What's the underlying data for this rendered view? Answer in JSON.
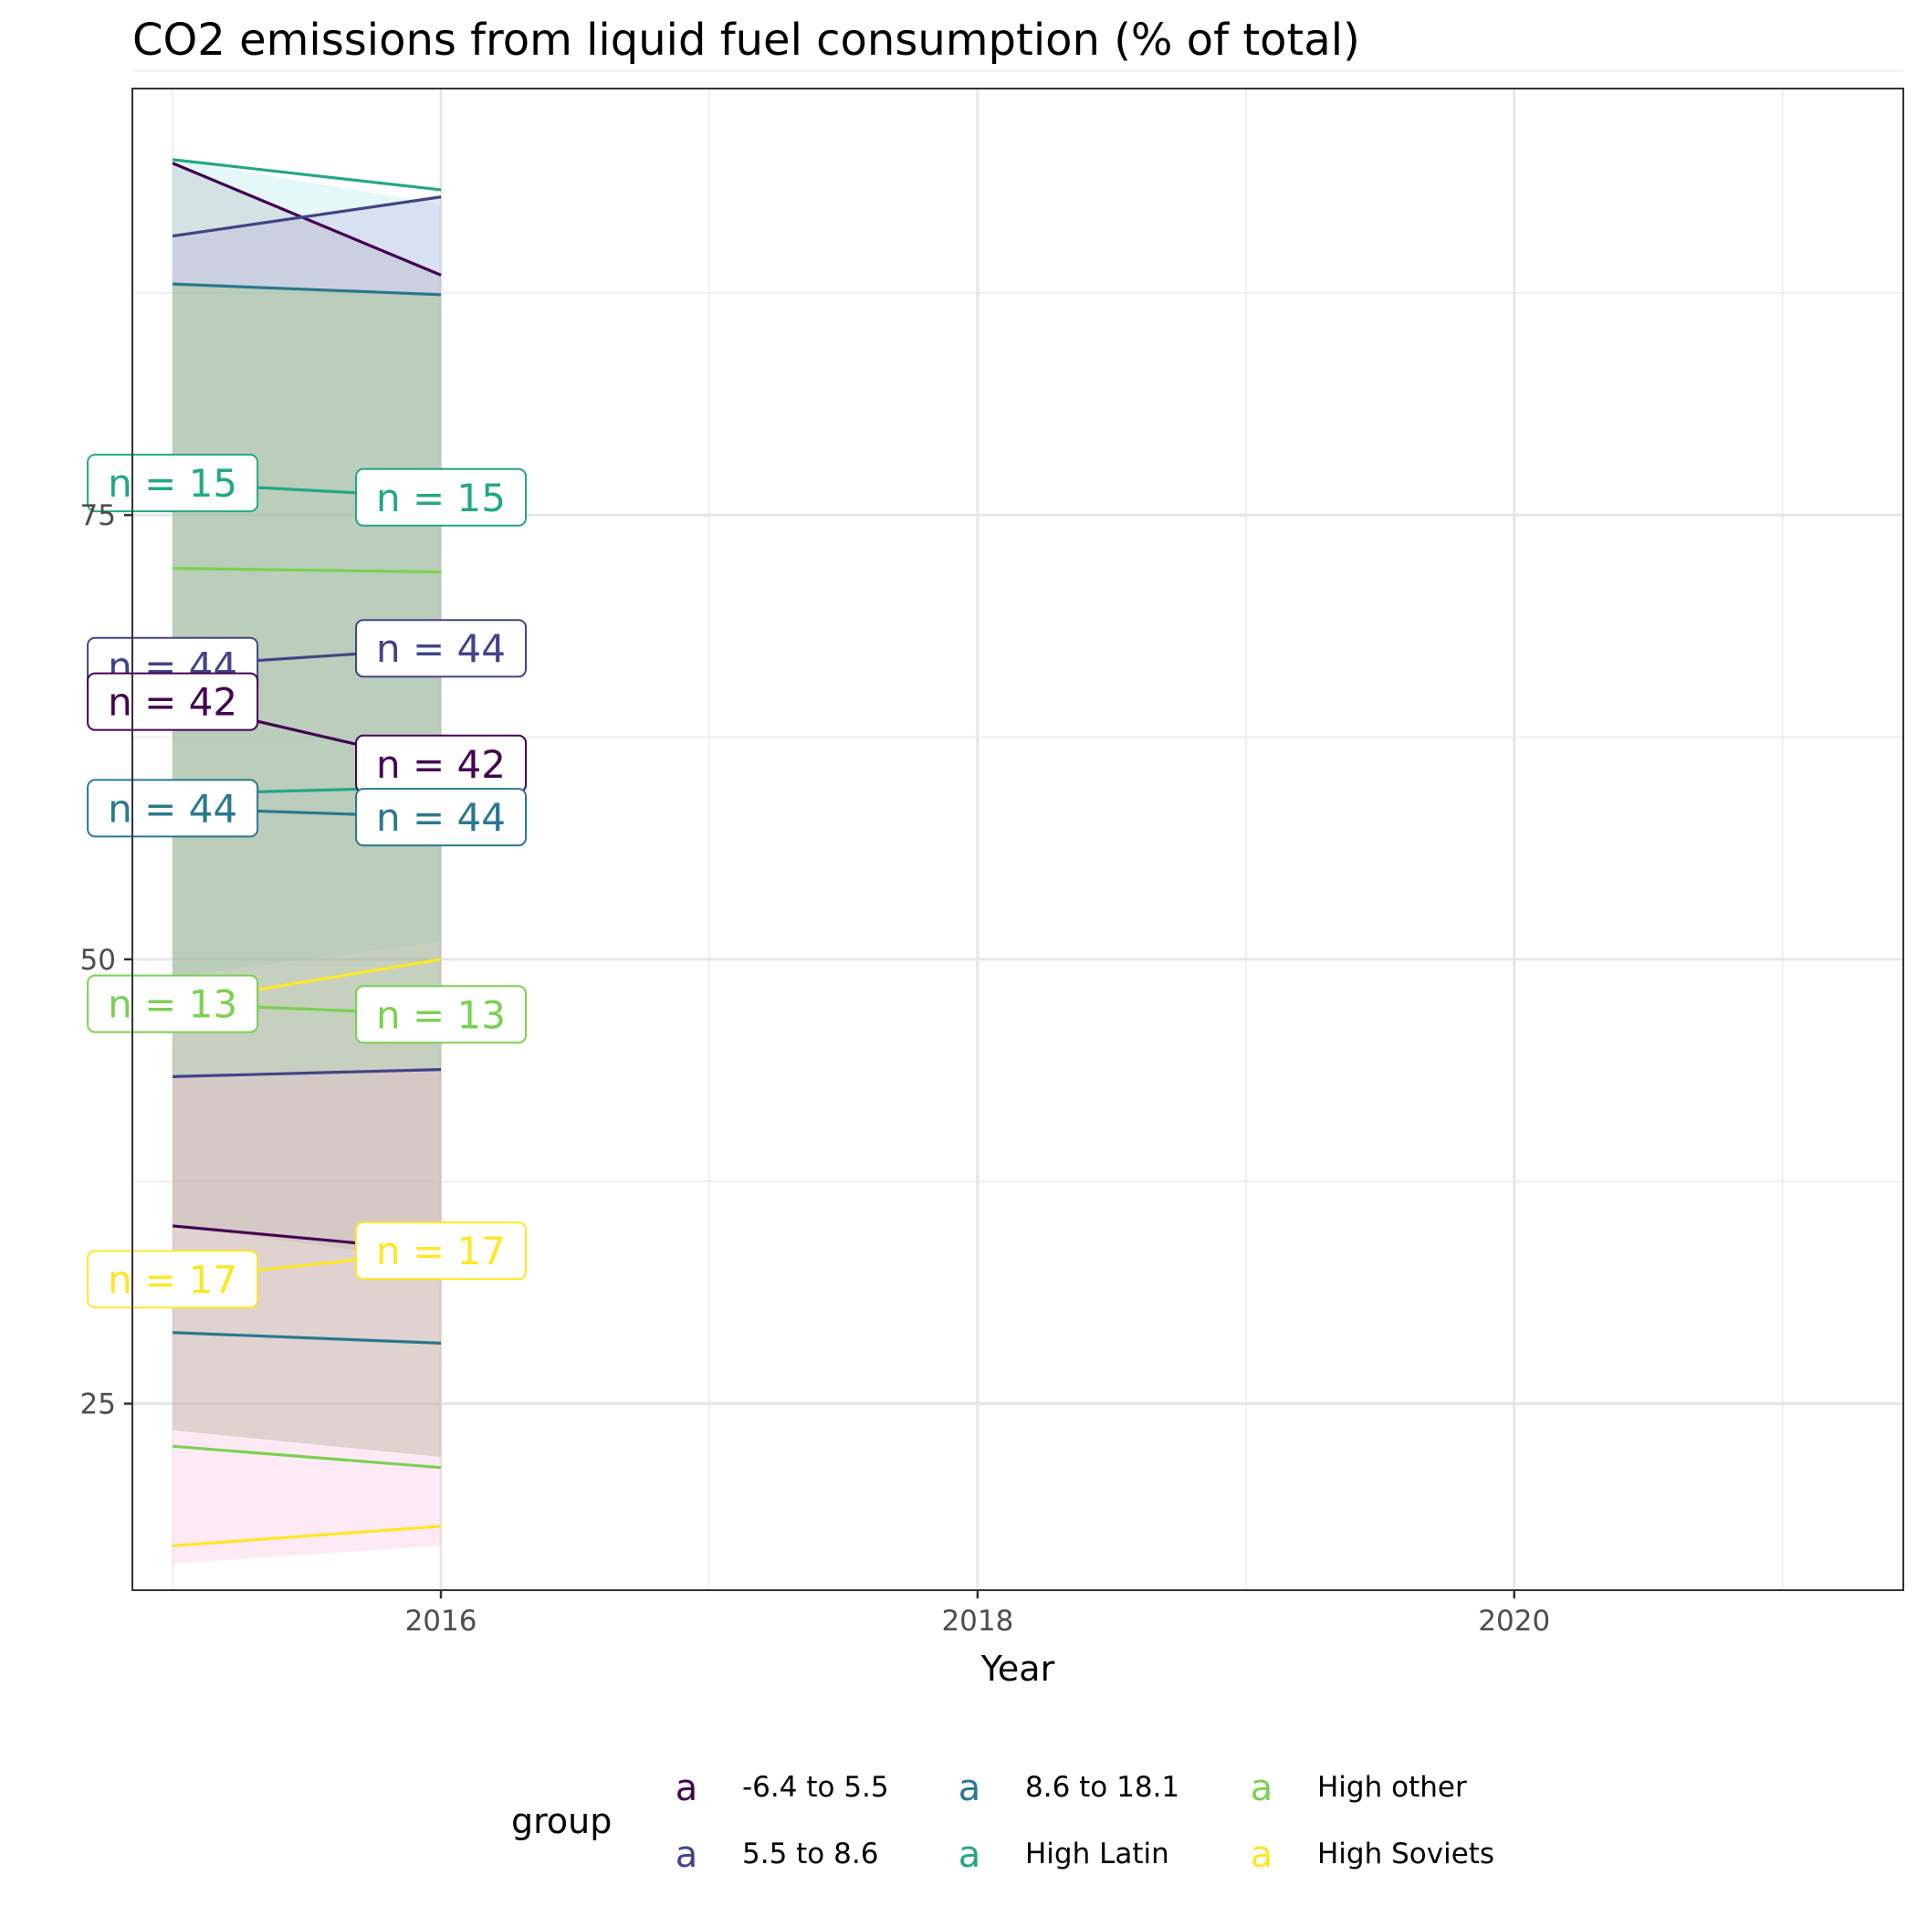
{
  "chart_data": {
    "type": "line",
    "title": "CO2 emissions from liquid fuel consumption (% of total)",
    "xlabel": "Year",
    "ylabel": "",
    "xlim": [
      2014.85,
      2021.45
    ],
    "ylim": [
      14.5,
      99.0
    ],
    "x_ticks": [
      2016,
      2018,
      2020
    ],
    "y_ticks": [
      25,
      50,
      75
    ],
    "grid": true,
    "legend": {
      "title": "group",
      "position": "bottom",
      "key_glyph": "a",
      "entries": [
        {
          "label": "-6.4 to 5.5",
          "color": "#440154"
        },
        {
          "label": "5.5 to 8.6",
          "color": "#414487"
        },
        {
          "label": "8.6 to 18.1",
          "color": "#2A788E"
        },
        {
          "label": "High Latin",
          "color": "#22A884"
        },
        {
          "label": "High other",
          "color": "#7AD151"
        },
        {
          "label": "High Soviets",
          "color": "#FDE725"
        }
      ]
    },
    "x": [
      2015,
      2016
    ],
    "ribbons": [
      {
        "upper": [
          95.0,
          92.5
        ],
        "lower": [
          49.0,
          51.0
        ],
        "fill": "#B2EBF2",
        "opacity": 0.35
      },
      {
        "upper": [
          94.8,
          88.5
        ],
        "lower": [
          35.0,
          33.0
        ],
        "fill": "#9E9E9E",
        "opacity": 0.25
      },
      {
        "upper": [
          90.7,
          93.0
        ],
        "lower": [
          23.5,
          22.0
        ],
        "fill": "#B39DDB",
        "opacity": 0.25
      },
      {
        "upper": [
          88.0,
          87.5
        ],
        "lower": [
          23.5,
          22.0
        ],
        "fill": "#8BC34A",
        "opacity": 0.25
      },
      {
        "upper": [
          43.5,
          44.0
        ],
        "lower": [
          16.0,
          17.0
        ],
        "fill": "#F8BBD9",
        "opacity": 0.3
      }
    ],
    "series": [
      {
        "name": "High Latin",
        "color": "#22A884",
        "role": "upper",
        "values": [
          95.0,
          93.3
        ]
      },
      {
        "name": "-6.4 to 5.5",
        "color": "#440154",
        "role": "upper",
        "values": [
          94.8,
          88.5
        ]
      },
      {
        "name": "5.5 to 8.6",
        "color": "#414487",
        "role": "upper",
        "values": [
          90.7,
          92.9
        ]
      },
      {
        "name": "8.6 to 18.1",
        "color": "#2A788E",
        "role": "upper",
        "values": [
          88.0,
          87.4
        ]
      },
      {
        "name": "High Latin",
        "color": "#22A884",
        "role": "median",
        "values": [
          76.8,
          76.0
        ]
      },
      {
        "name": "High other",
        "color": "#7AD151",
        "role": "upper",
        "values": [
          72.0,
          71.8
        ]
      },
      {
        "name": "5.5 to 8.6",
        "color": "#414487",
        "role": "median",
        "values": [
          66.5,
          67.5
        ]
      },
      {
        "name": "-6.4 to 5.5",
        "color": "#440154",
        "role": "median",
        "values": [
          64.5,
          61.0
        ]
      },
      {
        "name": "High Latin",
        "color": "#22A884",
        "role": "lower",
        "values": [
          59.3,
          59.7
        ]
      },
      {
        "name": "8.6 to 18.1",
        "color": "#2A788E",
        "role": "median",
        "values": [
          58.5,
          58.0
        ]
      },
      {
        "name": "High Soviets",
        "color": "#FDE725",
        "role": "upper",
        "values": [
          47.5,
          50.0
        ]
      },
      {
        "name": "High other",
        "color": "#7AD151",
        "role": "median",
        "values": [
          47.5,
          46.9
        ]
      },
      {
        "name": "5.5 to 8.6",
        "color": "#414487",
        "role": "lower",
        "values": [
          43.4,
          43.8
        ]
      },
      {
        "name": "-6.4 to 5.5",
        "color": "#440154",
        "role": "lower",
        "values": [
          35.0,
          33.6
        ]
      },
      {
        "name": "High Soviets",
        "color": "#FDE725",
        "role": "median",
        "values": [
          32.0,
          33.6
        ]
      },
      {
        "name": "8.6 to 18.1",
        "color": "#2A788E",
        "role": "lower",
        "values": [
          29.0,
          28.4
        ]
      },
      {
        "name": "High other",
        "color": "#7AD151",
        "role": "lower",
        "values": [
          22.6,
          21.4
        ]
      },
      {
        "name": "High Soviets",
        "color": "#FDE725",
        "role": "lower",
        "values": [
          17.0,
          18.1
        ]
      }
    ],
    "annotations": [
      {
        "text": "n = 15",
        "x": 2015,
        "y": 76.8,
        "color": "#22A884"
      },
      {
        "text": "n = 15",
        "x": 2016,
        "y": 76.0,
        "color": "#22A884"
      },
      {
        "text": "n = 44",
        "x": 2015,
        "y": 66.5,
        "color": "#414487"
      },
      {
        "text": "n = 44",
        "x": 2016,
        "y": 67.5,
        "color": "#414487"
      },
      {
        "text": "n = 42",
        "x": 2015,
        "y": 64.5,
        "color": "#440154"
      },
      {
        "text": "n = 42",
        "x": 2016,
        "y": 61.0,
        "color": "#440154"
      },
      {
        "text": "n = 44",
        "x": 2015,
        "y": 58.5,
        "color": "#2A788E"
      },
      {
        "text": "n = 44",
        "x": 2016,
        "y": 58.0,
        "color": "#2A788E"
      },
      {
        "text": "n = 13",
        "x": 2015,
        "y": 47.5,
        "color": "#7AD151"
      },
      {
        "text": "n = 13",
        "x": 2016,
        "y": 46.9,
        "color": "#7AD151"
      },
      {
        "text": "n = 17",
        "x": 2015,
        "y": 32.0,
        "color": "#FDE725"
      },
      {
        "text": "n = 17",
        "x": 2016,
        "y": 33.6,
        "color": "#FDE725"
      }
    ]
  }
}
